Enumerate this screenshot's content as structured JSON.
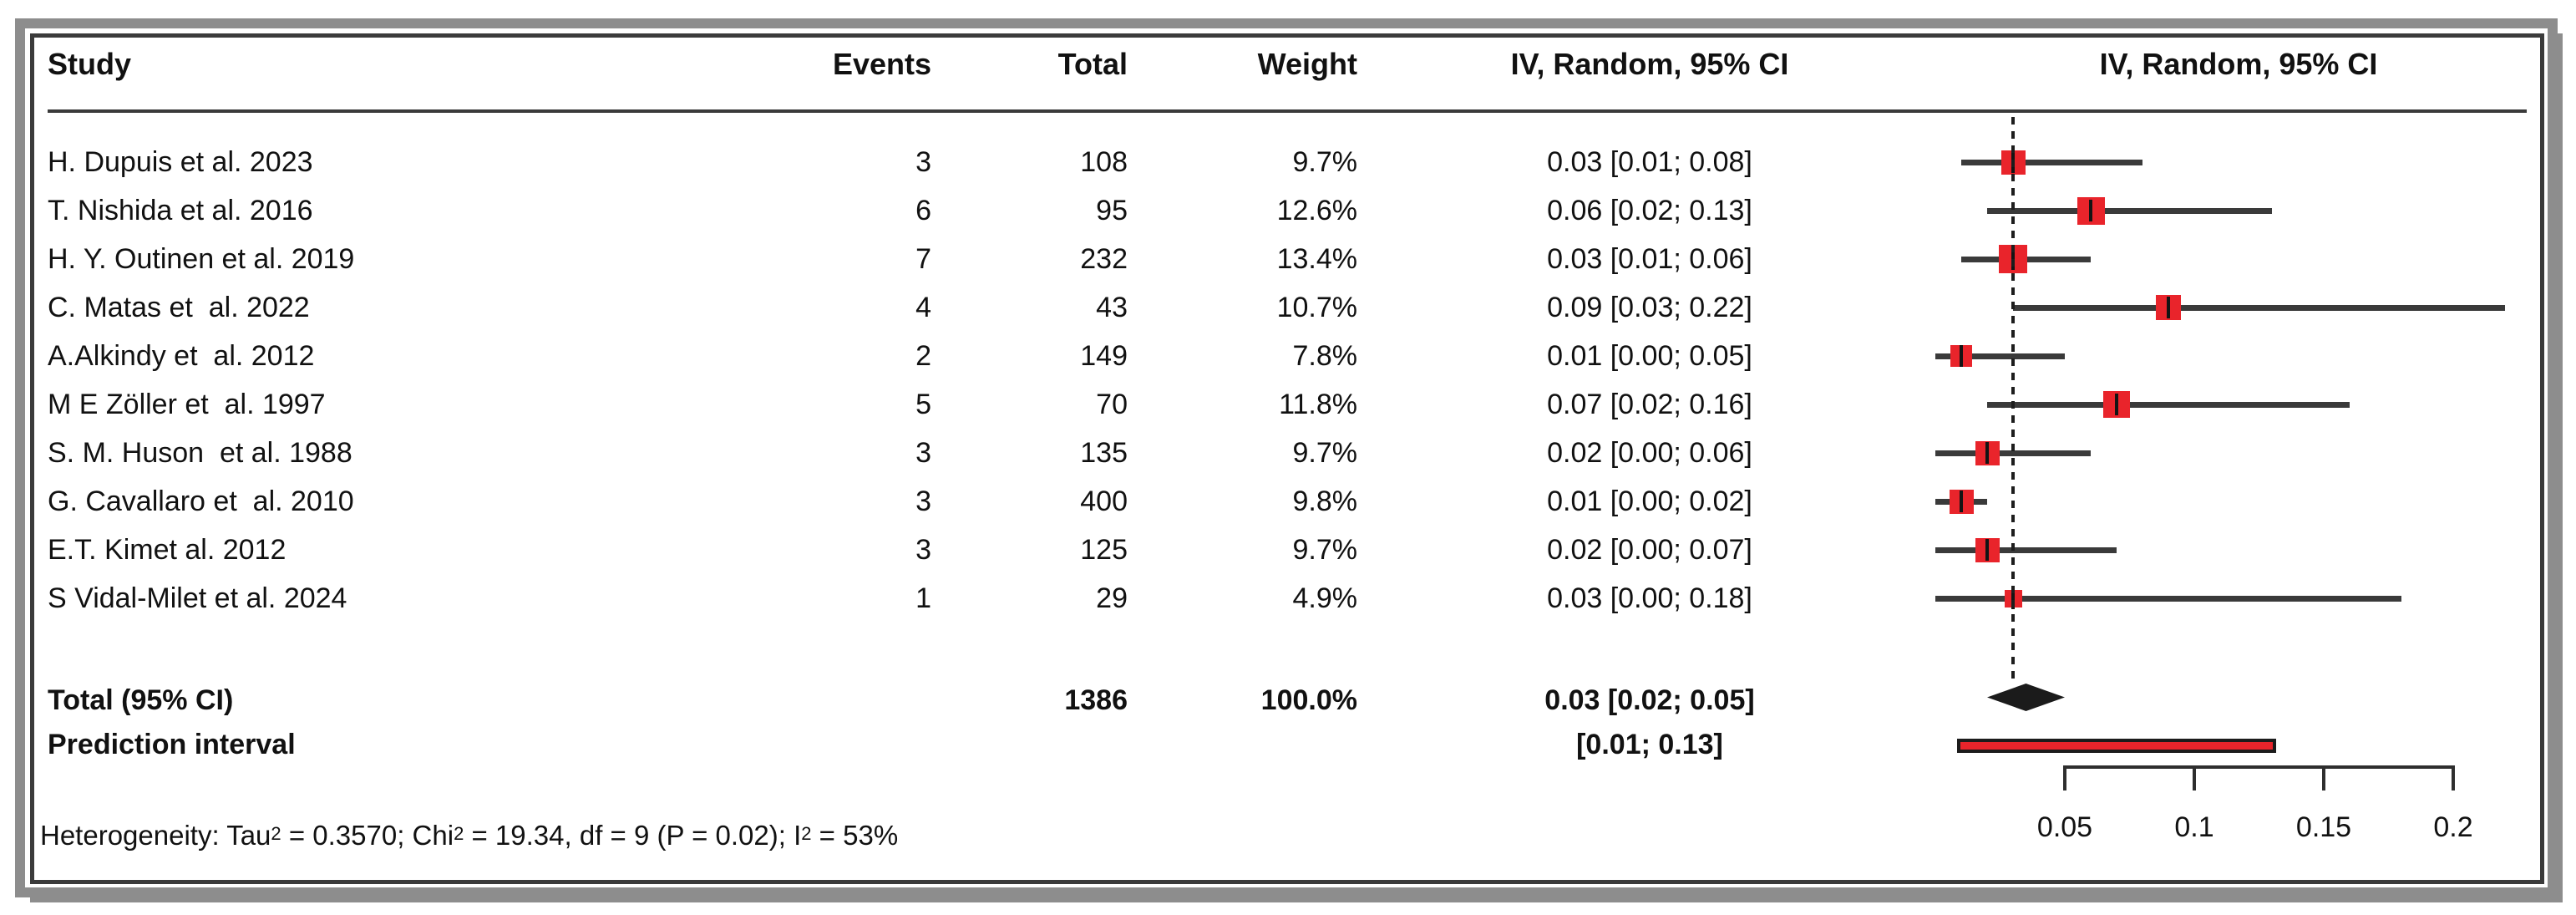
{
  "header": {
    "study": "Study",
    "events": "Events",
    "total": "Total",
    "weight": "Weight",
    "ci": "IV, Random, 95% CI",
    "plot": "IV, Random, 95% CI"
  },
  "colors": {
    "square_red": "#e9242b",
    "ci_line": "#3a3a3a",
    "diamond_black": "#1b1b1b",
    "frame_gray": "#8d8d8d",
    "frame_dark": "#3b3b3b"
  },
  "chart_data": {
    "type": "scatter",
    "variant": "forest-plot",
    "effect_measure": "IV, Random, 95% CI",
    "x_ticks": [
      {
        "value": 0.05,
        "label": "0.05"
      },
      {
        "value": 0.1,
        "label": "0.1"
      },
      {
        "value": 0.15,
        "label": "0.15"
      },
      {
        "value": 0.2,
        "label": "0.2"
      }
    ],
    "x_axis_range": [
      0,
      0.22
    ],
    "reference_line": 0.03,
    "studies": [
      {
        "name": "H. Dupuis et al. 2023",
        "events": "3",
        "total": "108",
        "weight": "9.7%",
        "weight_val": 9.7,
        "estimate": 0.03,
        "ci_low": 0.01,
        "ci_high": 0.08,
        "ci_text": "0.03 [0.01; 0.08]"
      },
      {
        "name": "T. Nishida et al. 2016",
        "events": "6",
        "total": "95",
        "weight": "12.6%",
        "weight_val": 12.6,
        "estimate": 0.06,
        "ci_low": 0.02,
        "ci_high": 0.13,
        "ci_text": "0.06 [0.02; 0.13]"
      },
      {
        "name": "H. Y. Outinen et al. 2019",
        "events": "7",
        "total": "232",
        "weight": "13.4%",
        "weight_val": 13.4,
        "estimate": 0.03,
        "ci_low": 0.01,
        "ci_high": 0.06,
        "ci_text": "0.03 [0.01; 0.06]"
      },
      {
        "name": "C. Matas et  al. 2022",
        "events": "4",
        "total": "43",
        "weight": "10.7%",
        "weight_val": 10.7,
        "estimate": 0.09,
        "ci_low": 0.03,
        "ci_high": 0.22,
        "ci_text": "0.09 [0.03; 0.22]"
      },
      {
        "name": "A.Alkindy et  al. 2012",
        "events": "2",
        "total": "149",
        "weight": "7.8%",
        "weight_val": 7.8,
        "estimate": 0.01,
        "ci_low": 0.0,
        "ci_high": 0.05,
        "ci_text": "0.01 [0.00; 0.05]"
      },
      {
        "name": "M E Zöller et  al. 1997",
        "events": "5",
        "total": "70",
        "weight": "11.8%",
        "weight_val": 11.8,
        "estimate": 0.07,
        "ci_low": 0.02,
        "ci_high": 0.16,
        "ci_text": "0.07 [0.02; 0.16]"
      },
      {
        "name": "S. M. Huson  et al. 1988",
        "events": "3",
        "total": "135",
        "weight": "9.7%",
        "weight_val": 9.7,
        "estimate": 0.02,
        "ci_low": 0.0,
        "ci_high": 0.06,
        "ci_text": "0.02 [0.00; 0.06]"
      },
      {
        "name": "G. Cavallaro et  al. 2010",
        "events": "3",
        "total": "400",
        "weight": "9.8%",
        "weight_val": 9.8,
        "estimate": 0.01,
        "ci_low": 0.0,
        "ci_high": 0.02,
        "ci_text": "0.01 [0.00; 0.02]"
      },
      {
        "name": "E.T. Kimet al. 2012",
        "events": "3",
        "total": "125",
        "weight": "9.7%",
        "weight_val": 9.7,
        "estimate": 0.02,
        "ci_low": 0.0,
        "ci_high": 0.07,
        "ci_text": "0.02 [0.00; 0.07]"
      },
      {
        "name": "S Vidal-Milet et al. 2024",
        "events": "1",
        "total": "29",
        "weight": "4.9%",
        "weight_val": 4.9,
        "estimate": 0.03,
        "ci_low": 0.0,
        "ci_high": 0.18,
        "ci_text": "0.03 [0.00; 0.18]"
      }
    ],
    "total": {
      "label": "Total (95% CI)",
      "total": "1386",
      "weight": "100.0%",
      "estimate": 0.03,
      "ci_low": 0.02,
      "ci_high": 0.05,
      "ci_text": "0.03 [0.02; 0.05]"
    },
    "prediction_interval": {
      "label": "Prediction interval",
      "low": 0.01,
      "high": 0.13,
      "ci_text": "[0.01; 0.13]"
    },
    "heterogeneity": {
      "plain": "Heterogeneity: Tau2 = 0.3570; Chi2 = 19.34, df = 9 (P = 0.02); I2 = 53%",
      "segments": [
        {
          "text": "Heterogeneity: Tau"
        },
        {
          "text": "2",
          "sup": true
        },
        {
          "text": " = 0.3570; Chi"
        },
        {
          "text": "2",
          "sup": true
        },
        {
          "text": " = 19.34, df = 9 (P = 0.02); I"
        },
        {
          "text": "2",
          "sup": true
        },
        {
          "text": " = 53%"
        }
      ]
    }
  }
}
